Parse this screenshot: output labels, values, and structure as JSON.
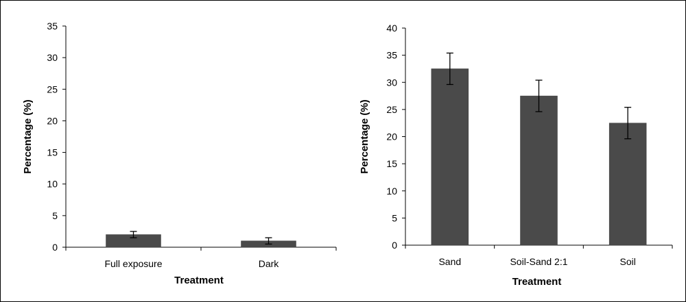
{
  "chart_data": [
    {
      "type": "bar",
      "title": "",
      "xlabel": "Treatment",
      "ylabel": "Percentage (%)",
      "ylim": [
        0,
        35
      ],
      "yticks": [
        0,
        5,
        10,
        15,
        20,
        25,
        30,
        35
      ],
      "categories": [
        "Full exposure",
        "Dark"
      ],
      "values": [
        2.0,
        1.0
      ],
      "errors": [
        0.5,
        0.5
      ],
      "bar_color": "#4a4a4a",
      "grid": false
    },
    {
      "type": "bar",
      "title": "",
      "xlabel": "Treatment",
      "ylabel": "Percentage (%)",
      "ylim": [
        0,
        40
      ],
      "yticks": [
        0,
        5,
        10,
        15,
        20,
        25,
        30,
        35,
        40
      ],
      "categories": [
        "Sand",
        "Soil-Sand 2:1",
        "Soil"
      ],
      "values": [
        32.5,
        27.5,
        22.5
      ],
      "errors": [
        2.9,
        2.9,
        2.9
      ],
      "bar_color": "#4a4a4a",
      "grid": false
    }
  ]
}
